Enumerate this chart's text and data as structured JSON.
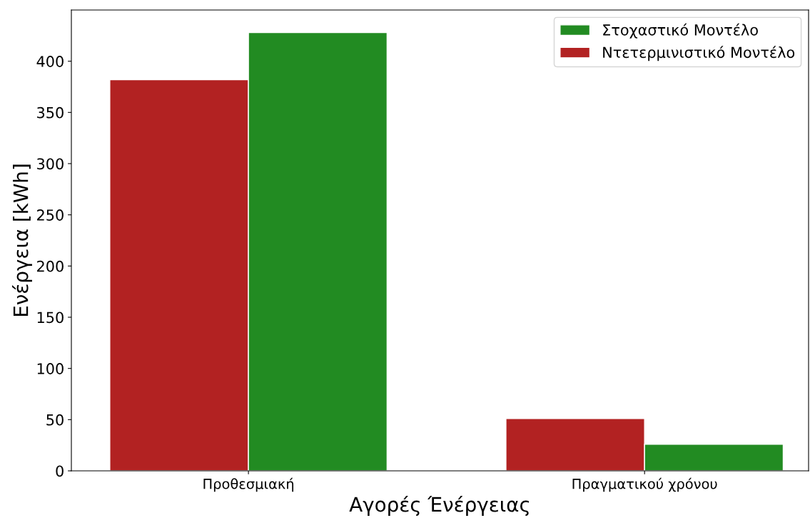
{
  "chart_data": {
    "type": "bar",
    "xlabel": "Αγορές Ένέργειας",
    "ylabel": "Ενέργεια [kWh]",
    "categories": [
      "Προθεσμιακή",
      "Πραγματικού χρόνου"
    ],
    "series": [
      {
        "name": "Ντετερμινιστικό Μοντέλο",
        "color": "#b22222",
        "values": [
          382,
          51
        ]
      },
      {
        "name": "Στοχαστικό Μοντέλο",
        "color": "#228b22",
        "values": [
          428,
          26
        ]
      }
    ],
    "ylim": [
      0,
      450
    ],
    "yticks": [
      0,
      50,
      100,
      150,
      200,
      250,
      300,
      350,
      400
    ],
    "grid": false,
    "legend": "top right"
  }
}
